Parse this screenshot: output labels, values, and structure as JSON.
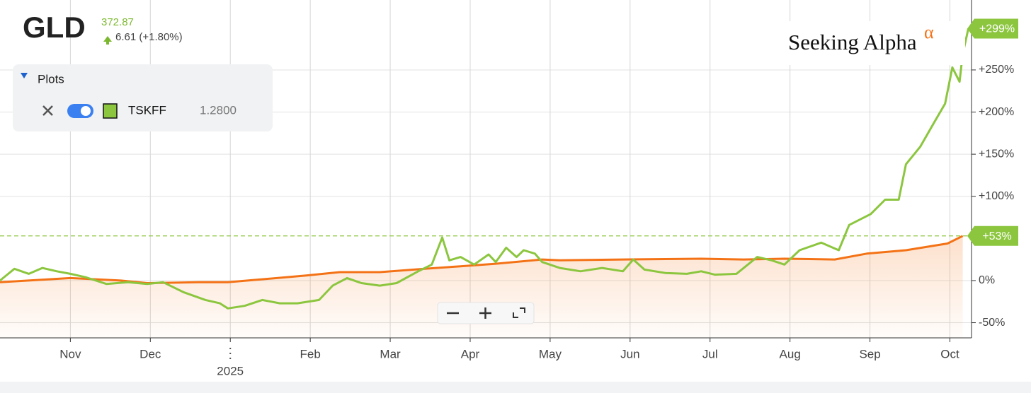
{
  "header": {
    "symbol": "GLD",
    "price": "372.87",
    "change": "6.61 (+1.80%)"
  },
  "panel": {
    "title": "Plots",
    "symbol": "TSKFF",
    "value": "1.2800"
  },
  "logo": {
    "text": "Seeking Alpha",
    "mark": "α"
  },
  "chart_data": {
    "type": "line",
    "xlim": [
      0.12,
      12.27
    ],
    "xticks": [
      {
        "value": 1,
        "label": "Nov"
      },
      {
        "value": 2,
        "label": "Dec"
      },
      {
        "value": 3,
        "label": "2025"
      },
      {
        "value": 4,
        "label": "Feb"
      },
      {
        "value": 5,
        "label": "Mar"
      },
      {
        "value": 6,
        "label": "Apr"
      },
      {
        "value": 7,
        "label": "May"
      },
      {
        "value": 8,
        "label": "Jun"
      },
      {
        "value": 9,
        "label": "Jul"
      },
      {
        "value": 10,
        "label": "Aug"
      },
      {
        "value": 11,
        "label": "Sep"
      },
      {
        "value": 12,
        "label": "Oct"
      }
    ],
    "ylim": [
      -68,
      333
    ],
    "yticks": [
      {
        "value": -50,
        "label": "-50%"
      },
      {
        "value": 0,
        "label": "0%"
      },
      {
        "value": 100,
        "label": "+100%"
      },
      {
        "value": 150,
        "label": "+150%"
      },
      {
        "value": 200,
        "label": "+200%"
      },
      {
        "value": 250,
        "label": "+250%"
      }
    ],
    "grid": true,
    "series": [
      {
        "name": "GLD",
        "color": "#f47216",
        "area": true,
        "x": [
          0.12,
          1,
          1.63,
          1.96,
          2.6,
          2.97,
          3.95,
          4.37,
          4.87,
          5.43,
          5.88,
          6.32,
          6.9,
          7.12,
          7.91,
          8.89,
          9.42,
          9.93,
          10.56,
          10.96,
          11.45,
          11.97,
          12.16
        ],
        "values": [
          -2,
          3,
          0,
          -3,
          -2,
          -2,
          6,
          10,
          10,
          14,
          17,
          20,
          25,
          24,
          25,
          26,
          25,
          26,
          25,
          32,
          36,
          44,
          53
        ],
        "last_label": "+53%"
      },
      {
        "name": "TSKFF",
        "color": "#8cc63f",
        "x": [
          0.12,
          0.3,
          0.48,
          0.65,
          0.83,
          1,
          1.19,
          1.45,
          1.72,
          1.96,
          2.16,
          2.42,
          2.69,
          2.87,
          2.97,
          3.18,
          3.4,
          3.62,
          3.84,
          4.11,
          4.28,
          4.46,
          4.64,
          4.87,
          5.08,
          5.35,
          5.52,
          5.65,
          5.74,
          5.88,
          6.05,
          6.23,
          6.32,
          6.45,
          6.58,
          6.67,
          6.81,
          6.9,
          7.12,
          7.38,
          7.65,
          7.91,
          8.04,
          8.18,
          8.44,
          8.71,
          8.89,
          9.06,
          9.33,
          9.59,
          9.77,
          9.93,
          10.12,
          10.39,
          10.61,
          10.74,
          11.01,
          11.19,
          11.36,
          11.45,
          11.63,
          11.81,
          11.94,
          12.03,
          12.12,
          12.16,
          12.23
        ],
        "values": [
          0,
          14,
          8,
          15,
          11,
          8,
          4,
          -4,
          -2,
          -4,
          -2,
          -14,
          -23,
          -27,
          -33,
          -30,
          -23,
          -27,
          -27,
          -23,
          -6,
          3,
          -3,
          -6,
          -3,
          11,
          19,
          51,
          24,
          28,
          19,
          31,
          22,
          39,
          28,
          36,
          32,
          22,
          15,
          11,
          15,
          11,
          25,
          13,
          9,
          8,
          11,
          7,
          8,
          28,
          24,
          19,
          36,
          45,
          36,
          66,
          79,
          96,
          96,
          138,
          159,
          189,
          210,
          253,
          236,
          269,
          299
        ],
        "last_label": "+299%"
      }
    ]
  }
}
